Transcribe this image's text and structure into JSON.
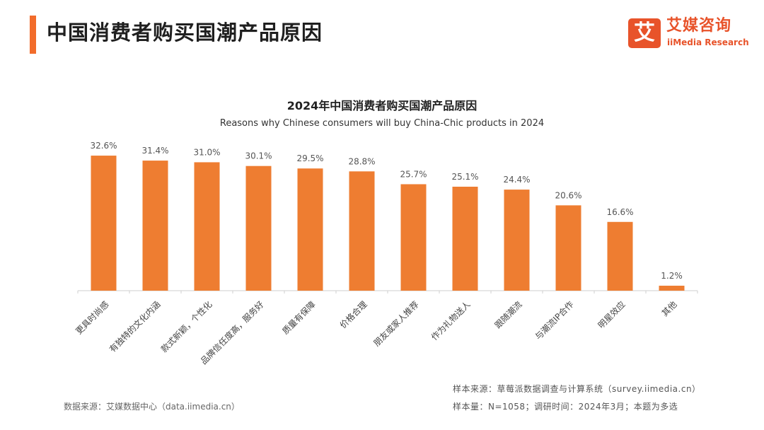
{
  "header": {
    "title": "中国消费者购买国潮产品原因",
    "accent_color": "#f26c2b"
  },
  "logo": {
    "mark": "艾",
    "name_cn": "艾媒咨询",
    "name_en": "iiMedia Research",
    "color": "#e8532a"
  },
  "chart_data": {
    "type": "bar",
    "title": "2024年中国消费者购买国潮产品原因",
    "subtitle": "Reasons why Chinese consumers will buy China-Chic products in 2024",
    "categories": [
      "更具时尚感",
      "有独特的文化内涵",
      "款式新颖，个性化",
      "品牌信任度高，服务好",
      "质量有保障",
      "价格合理",
      "朋友或家人推荐",
      "作为礼物送人",
      "跟随潮流",
      "与潮流IP合作",
      "明星效应",
      "其他"
    ],
    "values": [
      32.6,
      31.4,
      31.0,
      30.1,
      29.5,
      28.8,
      25.7,
      25.1,
      24.4,
      20.6,
      16.6,
      1.2
    ],
    "value_labels": [
      "32.6%",
      "31.4%",
      "31.0%",
      "30.1%",
      "29.5%",
      "28.8%",
      "25.7%",
      "25.1%",
      "24.4%",
      "20.6%",
      "16.6%",
      "1.2%"
    ],
    "unit": "%",
    "ylim": [
      0,
      35
    ],
    "bar_color": "#ee7d31",
    "grid": false,
    "legend": "none"
  },
  "footer": {
    "source_left": "数据来源：艾媒数据中心（data.iimedia.cn）",
    "source_right_1": "样本来源：草莓派数据调查与计算系统（survey.iimedia.cn）",
    "source_right_2": "样本量：N=1058；调研时间：2024年3月；本题为多选"
  }
}
